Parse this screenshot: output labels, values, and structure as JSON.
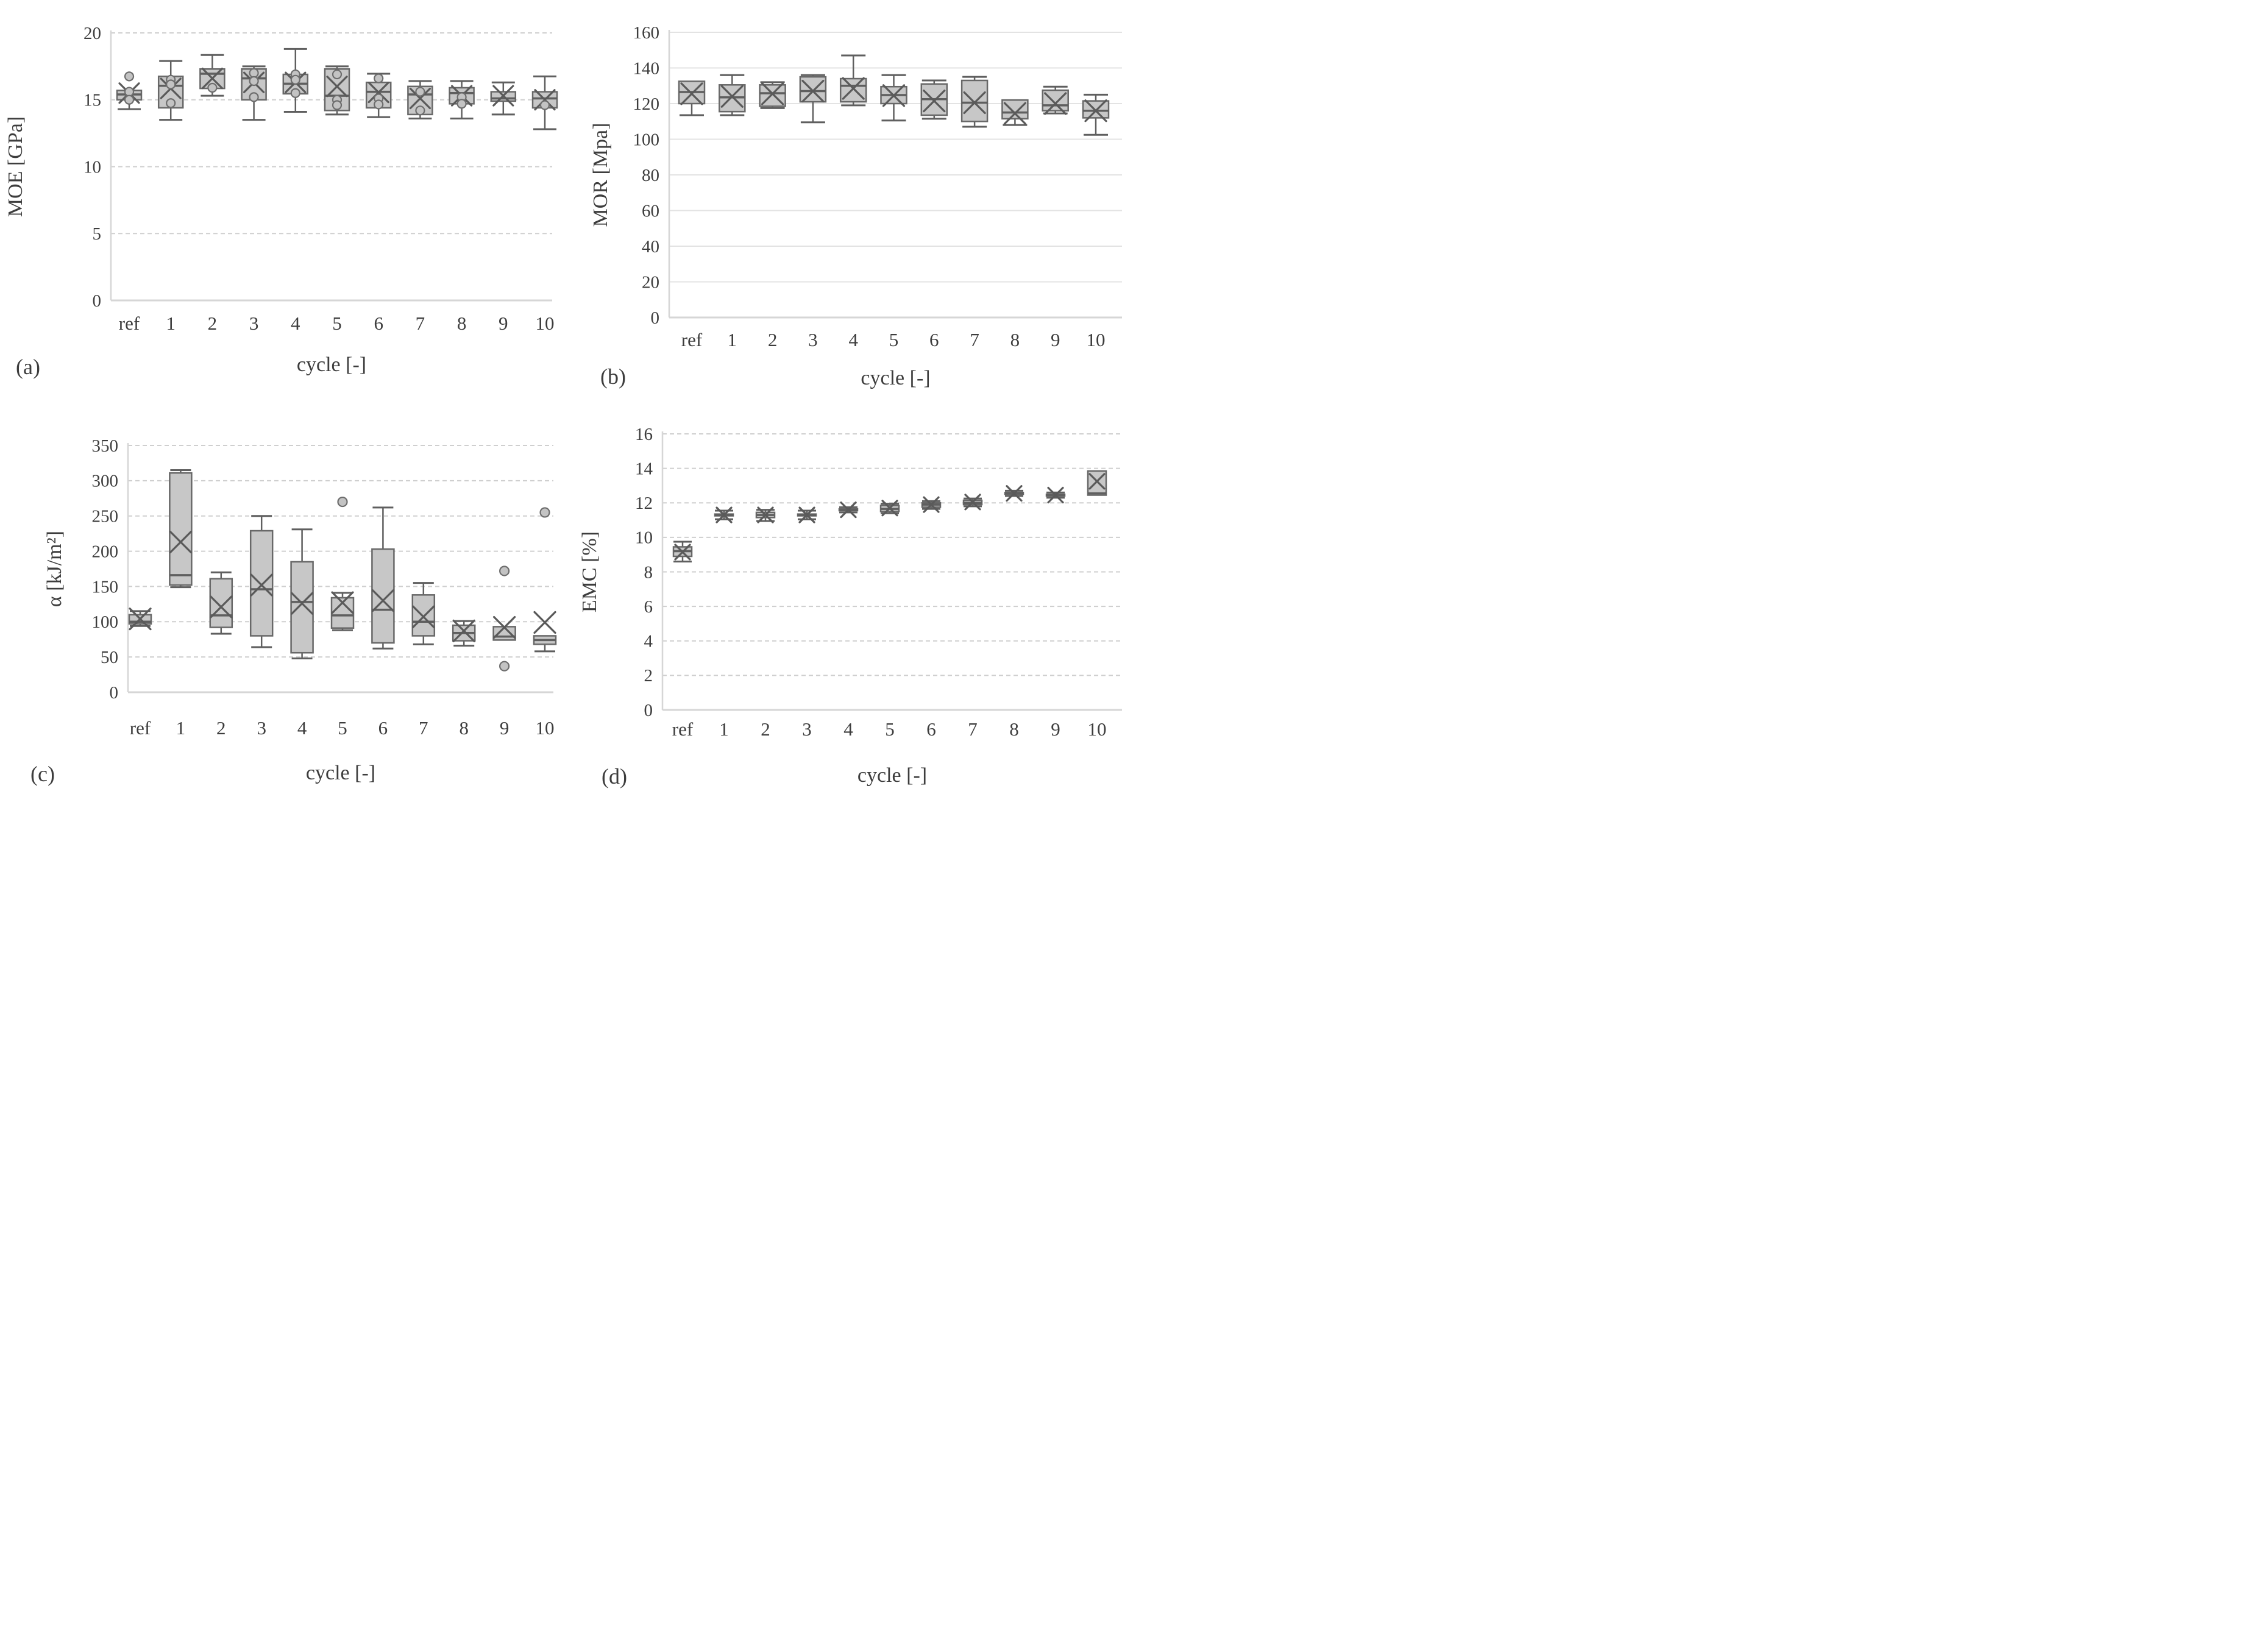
{
  "figure": {
    "background": "#ffffff",
    "description_visible_text_only": true
  },
  "colors": {
    "grid_dashed": "#cfcfcf",
    "grid_solid": "#e3e3e3",
    "axis_line": "#d6d6d6",
    "box_fill": "#c7c7c7",
    "box_stroke": "#686868",
    "whisker": "#5f5f5f",
    "median": "#5f5f5f",
    "mean_marker": "#5a5a5a",
    "point_fill": "#c3c3c3",
    "point_stroke": "#6d6d6d",
    "text": "#3d3d3d"
  },
  "chart_data": [
    {
      "id": "a",
      "type": "box",
      "panel_label": "(a)",
      "ylabel": "MOE [GPa]",
      "xlabel": "cycle [-]",
      "ylim": [
        0,
        20
      ],
      "yticks": [
        0,
        5,
        10,
        15,
        20
      ],
      "grid": "dashed",
      "legend": "none",
      "categories": [
        "ref",
        "1",
        "2",
        "3",
        "4",
        "5",
        "6",
        "7",
        "8",
        "9",
        "10"
      ],
      "boxes": [
        {
          "category": "ref",
          "q1": 15.0,
          "median": 15.4,
          "q3": 15.7,
          "mean": 15.5,
          "whisker_low": 14.3,
          "whisker_high": 15.7,
          "points": [
            16.75,
            15.6,
            15.0
          ],
          "outliers": []
        },
        {
          "category": "1",
          "q1": 14.4,
          "median": 16.05,
          "q3": 16.75,
          "mean": 15.85,
          "whisker_low": 13.5,
          "whisker_high": 17.9,
          "points": [
            16.5,
            16.15,
            14.75
          ],
          "outliers": []
        },
        {
          "category": "2",
          "q1": 15.85,
          "median": 16.95,
          "q3": 17.3,
          "mean": 16.6,
          "whisker_low": 15.3,
          "whisker_high": 18.35,
          "points": [
            15.9
          ],
          "outliers": []
        },
        {
          "category": "3",
          "q1": 15.0,
          "median": 16.6,
          "q3": 17.3,
          "mean": 16.3,
          "whisker_low": 13.5,
          "whisker_high": 17.5,
          "points": [
            17.0,
            16.4,
            15.2
          ],
          "outliers": []
        },
        {
          "category": "4",
          "q1": 15.45,
          "median": 16.2,
          "q3": 16.9,
          "mean": 16.3,
          "whisker_low": 14.1,
          "whisker_high": 18.8,
          "points": [
            16.9,
            16.5,
            15.5
          ],
          "outliers": []
        },
        {
          "category": "5",
          "q1": 14.2,
          "median": 15.3,
          "q3": 17.3,
          "mean": 16.0,
          "whisker_low": 13.9,
          "whisker_high": 17.5,
          "points": [
            16.9,
            15.0,
            14.6
          ],
          "outliers": []
        },
        {
          "category": "6",
          "q1": 14.4,
          "median": 15.6,
          "q3": 16.3,
          "mean": 15.55,
          "whisker_low": 13.7,
          "whisker_high": 16.95,
          "points": [
            16.6,
            15.1,
            14.65
          ],
          "outliers": []
        },
        {
          "category": "7",
          "q1": 13.9,
          "median": 15.4,
          "q3": 16.0,
          "mean": 15.1,
          "whisker_low": 13.6,
          "whisker_high": 16.4,
          "points": [
            15.6,
            14.2
          ],
          "outliers": []
        },
        {
          "category": "8",
          "q1": 14.7,
          "median": 15.5,
          "q3": 15.9,
          "mean": 15.3,
          "whisker_low": 13.6,
          "whisker_high": 16.4,
          "points": [
            15.2,
            14.7
          ],
          "outliers": []
        },
        {
          "category": "9",
          "q1": 14.9,
          "median": 15.1,
          "q3": 15.6,
          "mean": 15.3,
          "whisker_low": 13.9,
          "whisker_high": 16.3,
          "points": [],
          "outliers": []
        },
        {
          "category": "10",
          "q1": 14.4,
          "median": 15.1,
          "q3": 15.6,
          "mean": 15.0,
          "whisker_low": 12.8,
          "whisker_high": 16.75,
          "points": [
            14.6
          ],
          "outliers": []
        }
      ]
    },
    {
      "id": "b",
      "type": "box",
      "panel_label": "(b)",
      "ylabel": "MOR [Mpa]",
      "xlabel": "cycle [-]",
      "ylim": [
        0,
        160
      ],
      "yticks": [
        0,
        20,
        40,
        60,
        80,
        100,
        120,
        140,
        160
      ],
      "grid": "solid",
      "legend": "none",
      "categories": [
        "ref",
        "1",
        "2",
        "3",
        "4",
        "5",
        "6",
        "7",
        "8",
        "9",
        "10"
      ],
      "boxes": [
        {
          "category": "ref",
          "q1": 120.0,
          "median": 126.5,
          "q3": 132.5,
          "mean": 125.5,
          "whisker_low": 113.5,
          "whisker_high": 132.5,
          "points": [],
          "outliers": []
        },
        {
          "category": "1",
          "q1": 115.5,
          "median": 123.5,
          "q3": 130.5,
          "mean": 124.0,
          "whisker_low": 113.5,
          "whisker_high": 136.0,
          "points": [],
          "outliers": []
        },
        {
          "category": "2",
          "q1": 118.5,
          "median": 125.8,
          "q3": 130.5,
          "mean": 125.5,
          "whisker_low": 117.5,
          "whisker_high": 132.0,
          "points": [],
          "outliers": []
        },
        {
          "category": "3",
          "q1": 121.0,
          "median": 127.0,
          "q3": 135.0,
          "mean": 127.0,
          "whisker_low": 109.5,
          "whisker_high": 136.0,
          "points": [],
          "outliers": []
        },
        {
          "category": "4",
          "q1": 121.0,
          "median": 130.0,
          "q3": 134.0,
          "mean": 128.5,
          "whisker_low": 119.0,
          "whisker_high": 147.0,
          "points": [],
          "outliers": []
        },
        {
          "category": "5",
          "q1": 120.0,
          "median": 124.8,
          "q3": 129.5,
          "mean": 124.5,
          "whisker_low": 110.5,
          "whisker_high": 136.0,
          "points": [],
          "outliers": []
        },
        {
          "category": "6",
          "q1": 113.5,
          "median": 122.5,
          "q3": 131.0,
          "mean": 121.5,
          "whisker_low": 111.5,
          "whisker_high": 133.0,
          "points": [],
          "outliers": []
        },
        {
          "category": "7",
          "q1": 110.0,
          "median": 120.5,
          "q3": 133.0,
          "mean": 120.5,
          "whisker_low": 107.0,
          "whisker_high": 135.0,
          "points": [],
          "outliers": []
        },
        {
          "category": "8",
          "q1": 111.5,
          "median": 115.0,
          "q3": 122.0,
          "mean": 114.5,
          "whisker_low": 108.0,
          "whisker_high": 122.0,
          "points": [],
          "outliers": []
        },
        {
          "category": "9",
          "q1": 116.0,
          "median": 119.0,
          "q3": 127.5,
          "mean": 120.0,
          "whisker_low": 114.5,
          "whisker_high": 129.5,
          "points": [],
          "outliers": []
        },
        {
          "category": "10",
          "q1": 112.0,
          "median": 116.0,
          "q3": 121.5,
          "mean": 116.0,
          "whisker_low": 102.5,
          "whisker_high": 125.0,
          "points": [],
          "outliers": []
        }
      ]
    },
    {
      "id": "c",
      "type": "box",
      "panel_label": "(c)",
      "ylabel": "α [kJ/m²]",
      "xlabel": "cycle [-]",
      "ylim": [
        0,
        350
      ],
      "yticks": [
        0,
        50,
        100,
        150,
        200,
        250,
        300,
        350
      ],
      "grid": "dashed",
      "legend": "none",
      "categories": [
        "ref",
        "1",
        "2",
        "3",
        "4",
        "5",
        "6",
        "7",
        "8",
        "9",
        "10"
      ],
      "boxes": [
        {
          "category": "ref",
          "q1": 97,
          "median": 100,
          "q3": 110,
          "mean": 104,
          "whisker_low": 94,
          "whisker_high": 115,
          "points": [],
          "outliers": []
        },
        {
          "category": "1",
          "q1": 152,
          "median": 166,
          "q3": 311,
          "mean": 213,
          "whisker_low": 149,
          "whisker_high": 315,
          "points": [],
          "outliers": []
        },
        {
          "category": "2",
          "q1": 92,
          "median": 109,
          "q3": 161,
          "mean": 121,
          "whisker_low": 83,
          "whisker_high": 170,
          "points": [],
          "outliers": []
        },
        {
          "category": "3",
          "q1": 80,
          "median": 146,
          "q3": 229,
          "mean": 152,
          "whisker_low": 64,
          "whisker_high": 250,
          "points": [],
          "outliers": []
        },
        {
          "category": "4",
          "q1": 56,
          "median": 128,
          "q3": 185,
          "mean": 126,
          "whisker_low": 48,
          "whisker_high": 231,
          "points": [],
          "outliers": []
        },
        {
          "category": "5",
          "q1": 91,
          "median": 109,
          "q3": 134,
          "mean": 127,
          "whisker_low": 88,
          "whisker_high": 141,
          "points": [],
          "outliers": [
            270
          ]
        },
        {
          "category": "6",
          "q1": 70,
          "median": 117,
          "q3": 203,
          "mean": 130,
          "whisker_low": 62,
          "whisker_high": 262,
          "points": [],
          "outliers": []
        },
        {
          "category": "7",
          "q1": 80,
          "median": 100,
          "q3": 138,
          "mean": 107,
          "whisker_low": 68,
          "whisker_high": 155,
          "points": [],
          "outliers": []
        },
        {
          "category": "8",
          "q1": 73,
          "median": 84,
          "q3": 95,
          "mean": 87,
          "whisker_low": 66,
          "whisker_high": 101,
          "points": [],
          "outliers": []
        },
        {
          "category": "9",
          "q1": 74,
          "median": 79,
          "q3": 93,
          "mean": 92,
          "whisker_low": 74,
          "whisker_high": 93,
          "points": [],
          "outliers": [
            172,
            37
          ]
        },
        {
          "category": "10",
          "q1": 68,
          "median": 74,
          "q3": 80,
          "mean": 99,
          "whisker_low": 58,
          "whisker_high": 80,
          "points": [],
          "outliers": [
            255
          ]
        }
      ]
    },
    {
      "id": "d",
      "type": "box",
      "panel_label": "(d)",
      "ylabel": "EMC [%]",
      "xlabel": "cycle [-]",
      "ylim": [
        0,
        16
      ],
      "yticks": [
        0,
        2,
        4,
        6,
        8,
        10,
        12,
        14,
        16
      ],
      "grid": "dashed",
      "legend": "none",
      "categories": [
        "ref",
        "1",
        "2",
        "3",
        "4",
        "5",
        "6",
        "7",
        "8",
        "9",
        "10"
      ],
      "boxes": [
        {
          "category": "ref",
          "q1": 8.9,
          "median": 9.2,
          "q3": 9.45,
          "mean": 9.15,
          "whisker_low": 8.6,
          "whisker_high": 9.75,
          "points": [],
          "outliers": []
        },
        {
          "category": "1",
          "q1": 11.25,
          "median": 11.3,
          "q3": 11.35,
          "mean": 11.3,
          "whisker_low": 11.05,
          "whisker_high": 11.55,
          "points": [],
          "outliers": []
        },
        {
          "category": "2",
          "q1": 11.15,
          "median": 11.3,
          "q3": 11.45,
          "mean": 11.3,
          "whisker_low": 10.95,
          "whisker_high": 11.6,
          "points": [],
          "outliers": []
        },
        {
          "category": "3",
          "q1": 11.25,
          "median": 11.3,
          "q3": 11.35,
          "mean": 11.3,
          "whisker_low": 11.05,
          "whisker_high": 11.55,
          "points": [],
          "outliers": []
        },
        {
          "category": "4",
          "q1": 11.55,
          "median": 11.6,
          "q3": 11.65,
          "mean": 11.6,
          "whisker_low": 11.45,
          "whisker_high": 11.75,
          "points": [],
          "outliers": []
        },
        {
          "category": "5",
          "q1": 11.5,
          "median": 11.65,
          "q3": 11.85,
          "mean": 11.7,
          "whisker_low": 11.4,
          "whisker_high": 11.95,
          "points": [],
          "outliers": []
        },
        {
          "category": "6",
          "q1": 11.75,
          "median": 11.9,
          "q3": 12.0,
          "mean": 11.9,
          "whisker_low": 11.65,
          "whisker_high": 12.1,
          "points": [],
          "outliers": []
        },
        {
          "category": "7",
          "q1": 11.9,
          "median": 12.0,
          "q3": 12.15,
          "mean": 12.05,
          "whisker_low": 11.8,
          "whisker_high": 12.25,
          "points": [],
          "outliers": []
        },
        {
          "category": "8",
          "q1": 12.5,
          "median": 12.55,
          "q3": 12.6,
          "mean": 12.55,
          "whisker_low": 12.4,
          "whisker_high": 12.7,
          "points": [],
          "outliers": []
        },
        {
          "category": "9",
          "q1": 12.4,
          "median": 12.45,
          "q3": 12.5,
          "mean": 12.45,
          "whisker_low": 12.3,
          "whisker_high": 12.6,
          "points": [],
          "outliers": []
        },
        {
          "category": "10",
          "q1": 12.45,
          "median": 12.55,
          "q3": 13.85,
          "mean": 13.25,
          "whisker_low": 12.45,
          "whisker_high": 13.85,
          "points": [],
          "outliers": []
        }
      ]
    }
  ]
}
